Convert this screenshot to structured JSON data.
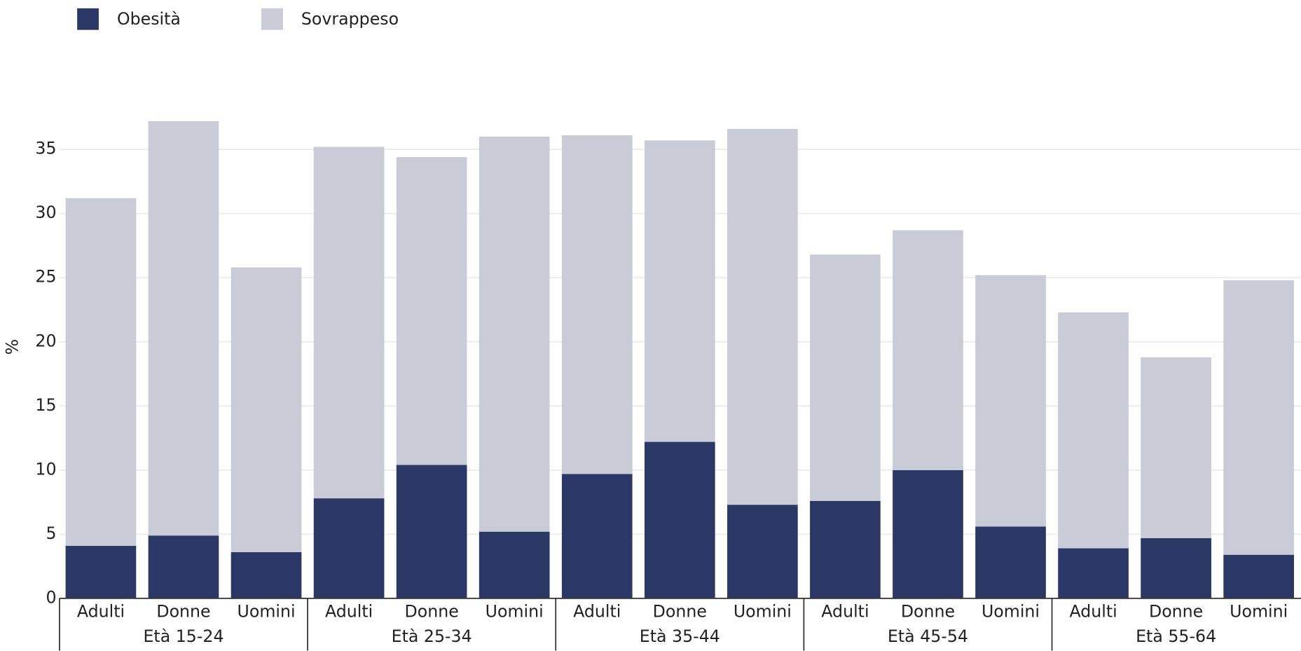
{
  "chart_data": {
    "type": "stacked_bar",
    "y_label": "%",
    "categories": [
      "Adulti",
      "Donne",
      "Uomini",
      "Adulti",
      "Donne",
      "Uomini",
      "Adulti",
      "Donne",
      "Uomini",
      "Adulti",
      "Donne",
      "Uomini",
      "Adulti",
      "Donne",
      "Uomini"
    ],
    "groups": [
      "Età 15-24",
      "Età 25-34",
      "Età 35-44",
      "Età 45-54",
      "Età 55-64"
    ],
    "series": [
      {
        "name": "Obesità",
        "color": "#2b3866",
        "values": [
          4.1,
          4.9,
          3.6,
          7.8,
          10.4,
          5.2,
          9.7,
          12.2,
          7.3,
          7.6,
          10.0,
          5.6,
          3.9,
          4.7,
          3.4
        ]
      },
      {
        "name": "Sovrappeso",
        "color": "#c9cbd7",
        "values": [
          27.1,
          32.3,
          22.2,
          27.4,
          24.0,
          30.8,
          26.4,
          23.5,
          29.3,
          19.2,
          18.7,
          19.6,
          18.4,
          14.1,
          21.4
        ]
      }
    ],
    "ylim": [
      0,
      38
    ],
    "yticks": [
      0,
      5,
      10,
      15,
      20,
      25,
      30,
      35
    ],
    "grid": true,
    "legend": "top-left"
  }
}
